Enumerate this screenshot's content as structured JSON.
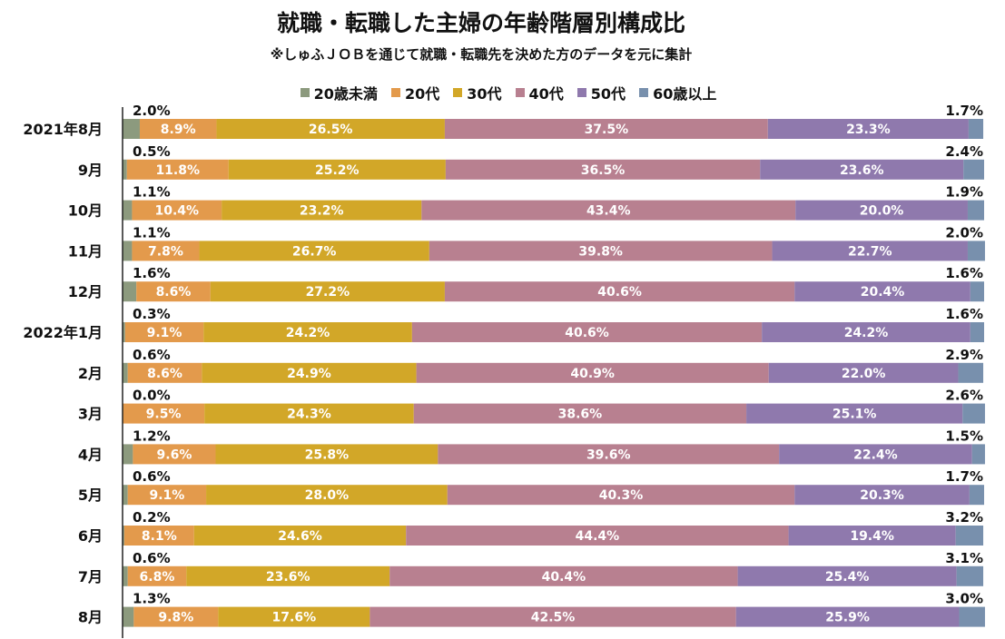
{
  "chart_data": {
    "type": "bar",
    "stacked": "percent",
    "orientation": "horizontal",
    "title": "就職・転職した主婦の年齢階層別構成比",
    "subtitle": "※しゅふＪＯＢを通じて就職・転職先を決めた方のデータを元に集計",
    "xlim": [
      0,
      100
    ],
    "legend_position": "top",
    "categories": [
      "2021年8月",
      "9月",
      "10月",
      "11月",
      "12月",
      "2022年1月",
      "2月",
      "3月",
      "4月",
      "5月",
      "6月",
      "7月",
      "8月"
    ],
    "series": [
      {
        "name": "20歳未満",
        "color": "#8c9a7e",
        "values": [
          2.0,
          0.5,
          1.1,
          1.1,
          1.6,
          0.3,
          0.6,
          0.0,
          1.2,
          0.6,
          0.2,
          0.6,
          1.3
        ]
      },
      {
        "name": "20代",
        "color": "#e39a4c",
        "values": [
          8.9,
          11.8,
          10.4,
          7.8,
          8.6,
          9.1,
          8.6,
          9.5,
          9.6,
          9.1,
          8.1,
          6.8,
          9.8
        ]
      },
      {
        "name": "30代",
        "color": "#d2a728",
        "values": [
          26.5,
          25.2,
          23.2,
          26.7,
          27.2,
          24.2,
          24.9,
          24.3,
          25.8,
          28.0,
          24.6,
          23.6,
          17.6
        ]
      },
      {
        "name": "40代",
        "color": "#b88090",
        "values": [
          37.5,
          36.5,
          43.4,
          39.8,
          40.6,
          40.6,
          40.9,
          38.6,
          39.6,
          40.3,
          44.4,
          40.4,
          42.5
        ]
      },
      {
        "name": "50代",
        "color": "#8f79ad",
        "values": [
          23.3,
          23.6,
          20.0,
          22.7,
          20.4,
          24.2,
          22.0,
          25.1,
          22.4,
          20.3,
          19.4,
          25.4,
          25.9
        ]
      },
      {
        "name": "60歳以上",
        "color": "#7890ad",
        "values": [
          1.7,
          2.4,
          1.9,
          2.0,
          1.6,
          1.6,
          2.9,
          2.6,
          1.5,
          1.7,
          3.2,
          3.1,
          3.0
        ]
      }
    ]
  }
}
